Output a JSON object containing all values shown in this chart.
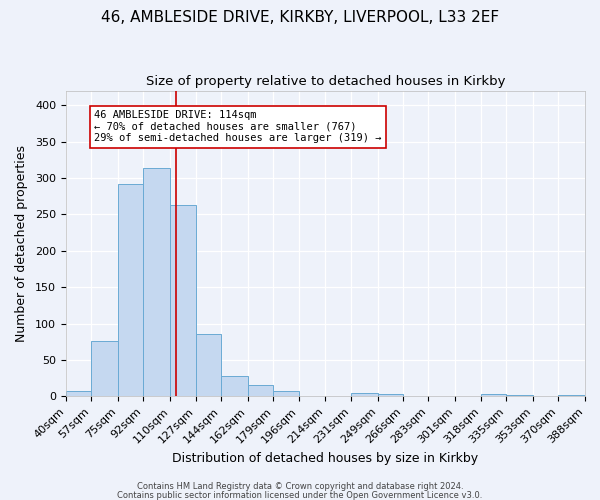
{
  "title1": "46, AMBLESIDE DRIVE, KIRKBY, LIVERPOOL, L33 2EF",
  "title2": "Size of property relative to detached houses in Kirkby",
  "xlabel": "Distribution of detached houses by size in Kirkby",
  "ylabel": "Number of detached properties",
  "bin_edges": [
    40,
    57,
    75,
    92,
    110,
    127,
    144,
    162,
    179,
    196,
    214,
    231,
    249,
    266,
    283,
    301,
    318,
    335,
    353,
    370,
    388
  ],
  "bin_labels": [
    "40sqm",
    "57sqm",
    "75sqm",
    "92sqm",
    "110sqm",
    "127sqm",
    "144sqm",
    "162sqm",
    "179sqm",
    "196sqm",
    "214sqm",
    "231sqm",
    "249sqm",
    "266sqm",
    "283sqm",
    "301sqm",
    "318sqm",
    "335sqm",
    "353sqm",
    "370sqm",
    "388sqm"
  ],
  "counts": [
    8,
    76,
    291,
    313,
    263,
    85,
    28,
    15,
    8,
    0,
    0,
    5,
    3,
    0,
    0,
    0,
    3,
    2,
    0,
    2
  ],
  "bar_color": "#c5d8f0",
  "bar_edge_color": "#6aaad4",
  "property_size": 114,
  "vline_color": "#cc0000",
  "annotation_text": "46 AMBLESIDE DRIVE: 114sqm\n← 70% of detached houses are smaller (767)\n29% of semi-detached houses are larger (319) →",
  "annotation_box_color": "#ffffff",
  "annotation_box_edge": "#cc0000",
  "ylim": [
    0,
    420
  ],
  "yticks": [
    0,
    50,
    100,
    150,
    200,
    250,
    300,
    350,
    400
  ],
  "footer1": "Contains HM Land Registry data © Crown copyright and database right 2024.",
  "footer2": "Contains public sector information licensed under the Open Government Licence v3.0.",
  "background_color": "#eef2fa",
  "grid_color": "#ffffff",
  "title1_fontsize": 11,
  "title2_fontsize": 9.5,
  "xlabel_fontsize": 9,
  "ylabel_fontsize": 9,
  "tick_fontsize": 8,
  "footer_fontsize": 6,
  "annot_fontsize": 7.5
}
